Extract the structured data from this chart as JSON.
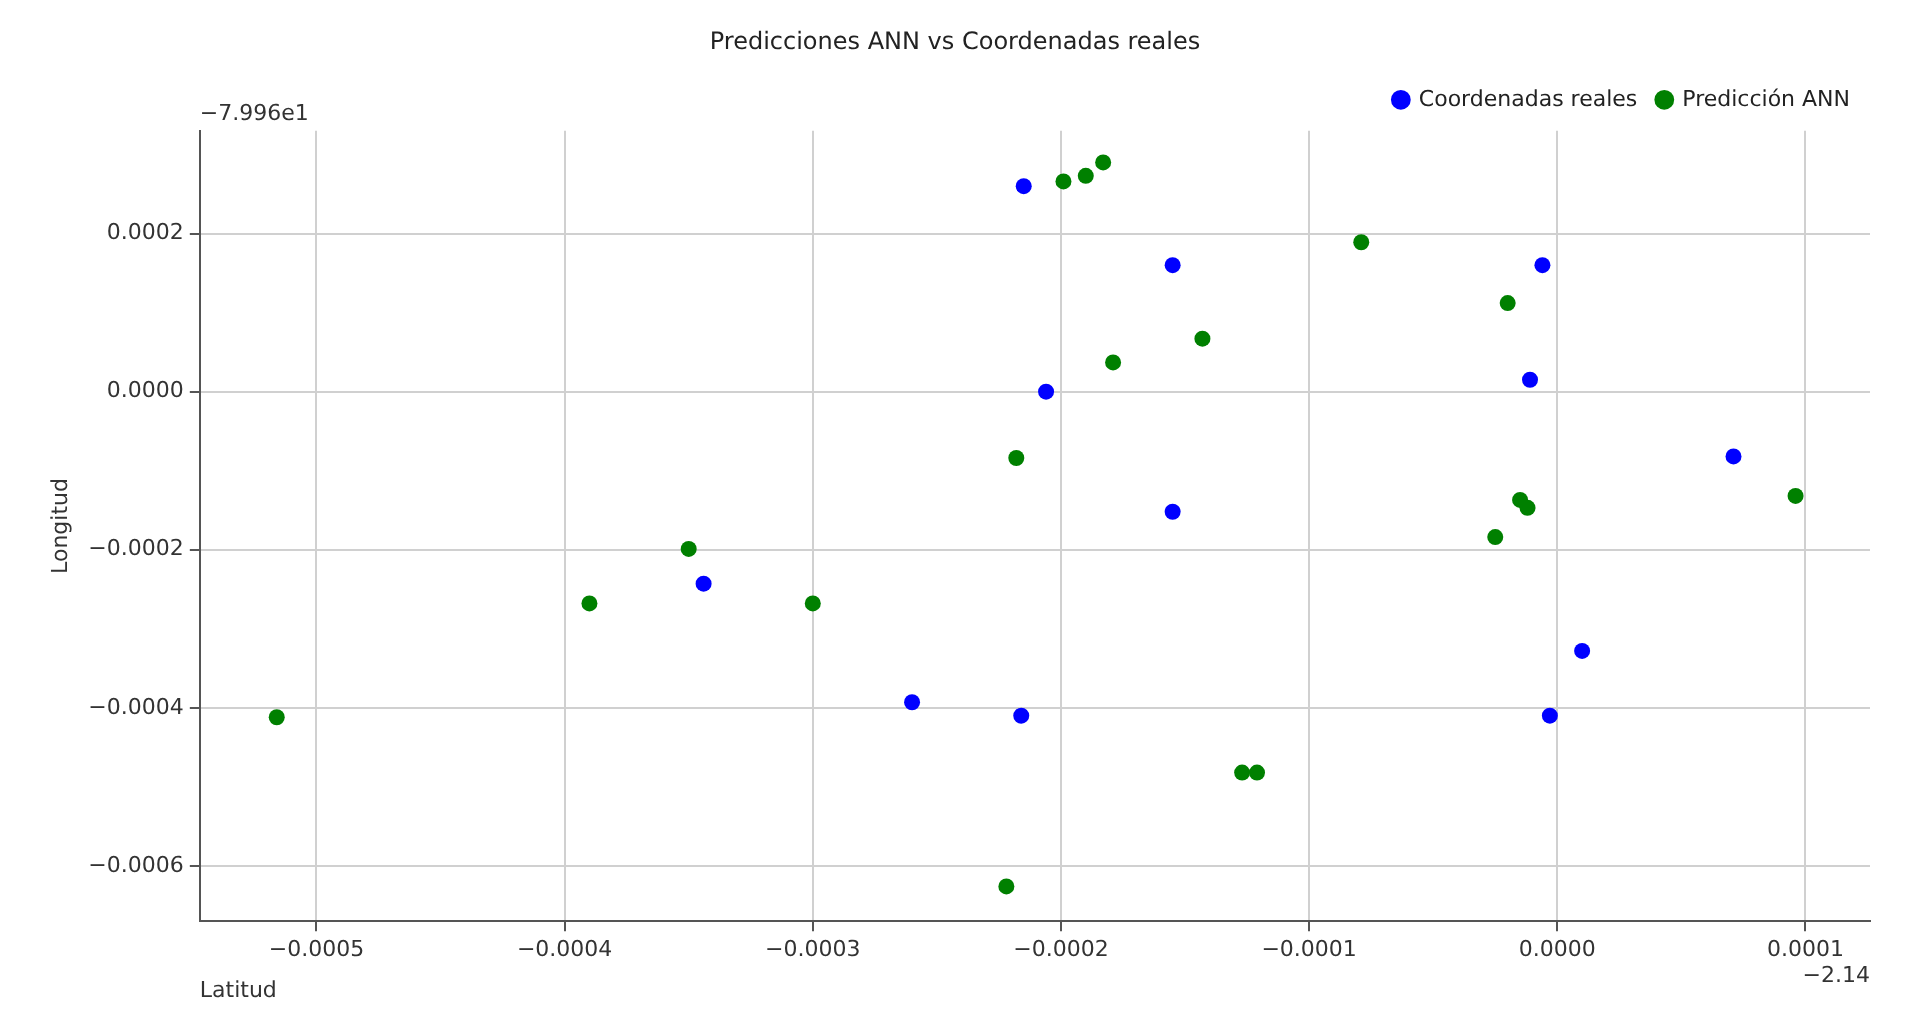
{
  "chart_data": {
    "type": "scatter",
    "title": "Predicciones ANN vs Coordenadas reales",
    "xlabel": "Latitud",
    "ylabel": "Longitud",
    "annotations": [
      "−7.996e1",
      "−2.14"
    ],
    "xlim": [
      -0.000547,
      0.000126
    ],
    "ylim": [
      -0.00067,
      0.00033
    ],
    "xticks": [
      {
        "value": -0.0005,
        "label": "−0.0005"
      },
      {
        "value": -0.0004,
        "label": "−0.0004"
      },
      {
        "value": -0.0003,
        "label": "−0.0003"
      },
      {
        "value": -0.0002,
        "label": "−0.0002"
      },
      {
        "value": -0.0001,
        "label": "−0.0001"
      },
      {
        "value": 0,
        "label": "0.0000"
      },
      {
        "value": 0.0001,
        "label": "0.0001"
      }
    ],
    "yticks": [
      {
        "value": -0.0006,
        "label": "−0.0006"
      },
      {
        "value": -0.0004,
        "label": "−0.0004"
      },
      {
        "value": -0.0002,
        "label": "−0.0002"
      },
      {
        "value": 0,
        "label": "0.0000"
      },
      {
        "value": 0.0002,
        "label": "0.0002"
      }
    ],
    "grid": true,
    "legend": "top right",
    "marker": "circle",
    "series": [
      {
        "name": "Coordenadas reales",
        "color": "#0000ff",
        "x": [
          -0.000215,
          -0.000155,
          -6e-06,
          -0.000206,
          -1.1e-05,
          7.1e-05,
          -0.000155,
          -0.000344,
          1e-05,
          -0.00026,
          -0.000216,
          -3e-06
        ],
        "values": [
          0.00026,
          0.00016,
          0.00016,
          0.0,
          1.5e-05,
          -8.2e-05,
          -0.000152,
          -0.000243,
          -0.000328,
          -0.000393,
          -0.00041,
          -0.00041
        ]
      },
      {
        "name": "Predicción ANN",
        "color": "#008000",
        "x": [
          -0.000199,
          -0.00019,
          -0.000183,
          -7.9e-05,
          -2e-05,
          -0.000143,
          -0.000179,
          -0.000218,
          -1.5e-05,
          -1.2e-05,
          -2.5e-05,
          9.6e-05,
          -0.00035,
          -0.00039,
          -0.0003,
          -0.000516,
          -0.000127,
          -0.000121,
          -0.000222
        ],
        "values": [
          0.000266,
          0.000273,
          0.00029,
          0.000189,
          0.000112,
          6.7e-05,
          3.7e-05,
          -8.4e-05,
          -0.000137,
          -0.000147,
          -0.000184,
          -0.000132,
          -0.000199,
          -0.000268,
          -0.000268,
          -0.000412,
          -0.000482,
          -0.000482,
          -0.000626
        ]
      }
    ]
  }
}
